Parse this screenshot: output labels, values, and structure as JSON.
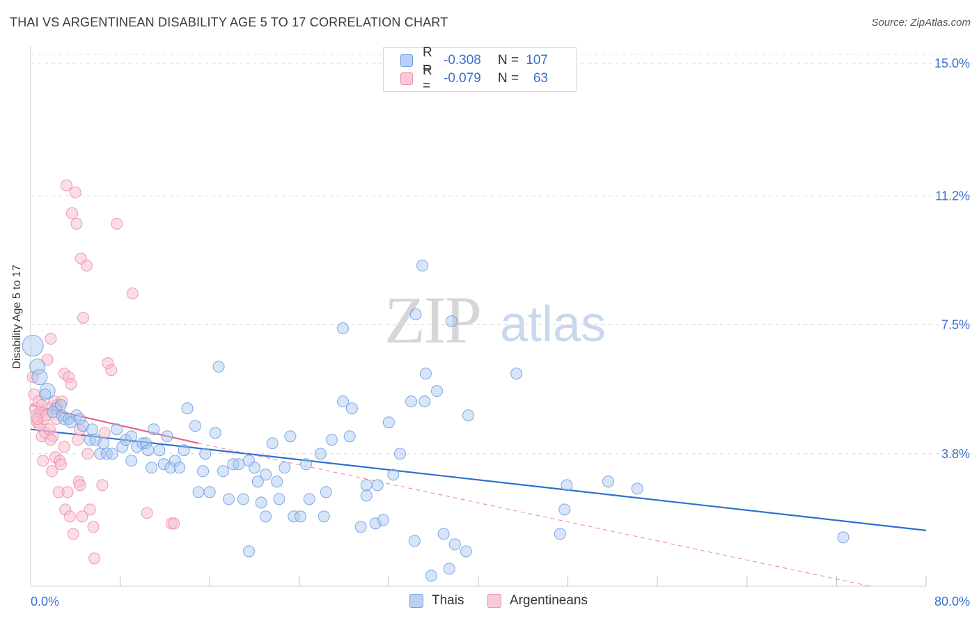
{
  "title": "THAI VS ARGENTINEAN DISABILITY AGE 5 TO 17 CORRELATION CHART",
  "source": "Source: ZipAtlas.com",
  "watermark": {
    "zip": "ZIP",
    "atlas": "atlas"
  },
  "legend": {
    "rows": [
      {
        "r_label": "R =",
        "r_value": "-0.308",
        "n_label": "N =",
        "n_value": "107",
        "series": "Thais"
      },
      {
        "r_label": "R =",
        "r_value": "-0.079",
        "n_label": "N =",
        "n_value": "63",
        "series": "Argentineans"
      }
    ]
  },
  "bottom_legend": [
    "Thais",
    "Argentineans"
  ],
  "colors": {
    "blue_fill": "#a9c6f0",
    "blue_stroke": "#6f9ee0",
    "blue_line": "#2f6fd0",
    "pink_fill": "#f6bccd",
    "pink_stroke": "#ec8fab",
    "pink_line": "#e8648e",
    "grid": "#d9d9d9",
    "axis_text": "#3a6fcf"
  },
  "chart_data": {
    "type": "scatter",
    "title": "THAI VS ARGENTINEAN DISABILITY AGE 5 TO 17 CORRELATION CHART",
    "xlabel": "",
    "ylabel": "Disability Age 5 to 17",
    "xlim": [
      0,
      80
    ],
    "ylim": [
      0,
      15.5
    ],
    "x_tick_labels": [
      "0.0%",
      "80.0%"
    ],
    "y_ticks": [
      3.8,
      7.5,
      11.2,
      15.0
    ],
    "y_tick_labels": [
      "3.8%",
      "7.5%",
      "11.2%",
      "15.0%"
    ],
    "series": [
      {
        "name": "Thais",
        "r": -0.308,
        "n": 107,
        "trend": {
          "x": [
            0,
            80
          ],
          "y": [
            4.5,
            1.6
          ],
          "dashed_extension": false
        },
        "points": [
          {
            "x": 0.2,
            "y": 6.9,
            "s": 3
          },
          {
            "x": 0.6,
            "y": 6.3,
            "s": 2
          },
          {
            "x": 0.8,
            "y": 6.0,
            "s": 2
          },
          {
            "x": 1.5,
            "y": 5.6,
            "s": 2
          },
          {
            "x": 1.3,
            "y": 5.5,
            "s": 1
          },
          {
            "x": 2.3,
            "y": 5.1,
            "s": 1
          },
          {
            "x": 2.7,
            "y": 5.2,
            "s": 1
          },
          {
            "x": 2.0,
            "y": 5.0,
            "s": 1
          },
          {
            "x": 2.8,
            "y": 4.9,
            "s": 1
          },
          {
            "x": 3.0,
            "y": 4.8,
            "s": 1
          },
          {
            "x": 3.4,
            "y": 4.8,
            "s": 1
          },
          {
            "x": 4.1,
            "y": 4.9,
            "s": 1
          },
          {
            "x": 4.4,
            "y": 4.8,
            "s": 1
          },
          {
            "x": 4.7,
            "y": 4.6,
            "s": 1
          },
          {
            "x": 3.6,
            "y": 4.7,
            "s": 1
          },
          {
            "x": 5.5,
            "y": 4.5,
            "s": 1
          },
          {
            "x": 5.3,
            "y": 4.2,
            "s": 1
          },
          {
            "x": 5.8,
            "y": 4.2,
            "s": 1
          },
          {
            "x": 6.5,
            "y": 4.1,
            "s": 1
          },
          {
            "x": 6.2,
            "y": 3.8,
            "s": 1
          },
          {
            "x": 6.8,
            "y": 3.8,
            "s": 1
          },
          {
            "x": 7.3,
            "y": 3.8,
            "s": 1
          },
          {
            "x": 7.7,
            "y": 4.5,
            "s": 1
          },
          {
            "x": 8.2,
            "y": 4.0,
            "s": 1
          },
          {
            "x": 8.5,
            "y": 4.2,
            "s": 1
          },
          {
            "x": 9.0,
            "y": 3.6,
            "s": 1
          },
          {
            "x": 9.0,
            "y": 4.3,
            "s": 1
          },
          {
            "x": 9.5,
            "y": 4.0,
            "s": 1
          },
          {
            "x": 10.0,
            "y": 4.1,
            "s": 1
          },
          {
            "x": 10.3,
            "y": 4.1,
            "s": 1
          },
          {
            "x": 10.5,
            "y": 3.9,
            "s": 1
          },
          {
            "x": 11.0,
            "y": 4.5,
            "s": 1
          },
          {
            "x": 10.8,
            "y": 3.4,
            "s": 1
          },
          {
            "x": 11.5,
            "y": 3.9,
            "s": 1
          },
          {
            "x": 11.9,
            "y": 3.5,
            "s": 1
          },
          {
            "x": 12.2,
            "y": 4.3,
            "s": 1
          },
          {
            "x": 12.5,
            "y": 3.4,
            "s": 1
          },
          {
            "x": 12.9,
            "y": 3.6,
            "s": 1
          },
          {
            "x": 13.3,
            "y": 3.4,
            "s": 1
          },
          {
            "x": 13.7,
            "y": 3.9,
            "s": 1
          },
          {
            "x": 14.0,
            "y": 5.1,
            "s": 1
          },
          {
            "x": 14.7,
            "y": 4.6,
            "s": 1
          },
          {
            "x": 15.0,
            "y": 2.7,
            "s": 1
          },
          {
            "x": 15.4,
            "y": 3.3,
            "s": 1
          },
          {
            "x": 15.6,
            "y": 3.8,
            "s": 1
          },
          {
            "x": 16.0,
            "y": 2.7,
            "s": 1
          },
          {
            "x": 16.5,
            "y": 4.4,
            "s": 1
          },
          {
            "x": 16.8,
            "y": 6.3,
            "s": 1
          },
          {
            "x": 17.2,
            "y": 3.3,
            "s": 1
          },
          {
            "x": 17.7,
            "y": 2.5,
            "s": 1
          },
          {
            "x": 18.1,
            "y": 3.5,
            "s": 1
          },
          {
            "x": 18.6,
            "y": 3.5,
            "s": 1
          },
          {
            "x": 19.0,
            "y": 2.5,
            "s": 1
          },
          {
            "x": 19.5,
            "y": 3.6,
            "s": 1
          },
          {
            "x": 19.5,
            "y": 1.0,
            "s": 1
          },
          {
            "x": 20.0,
            "y": 3.4,
            "s": 1
          },
          {
            "x": 20.3,
            "y": 3.0,
            "s": 1
          },
          {
            "x": 20.6,
            "y": 2.4,
            "s": 1
          },
          {
            "x": 21.0,
            "y": 2.0,
            "s": 1
          },
          {
            "x": 21.0,
            "y": 3.2,
            "s": 1
          },
          {
            "x": 21.6,
            "y": 4.1,
            "s": 1
          },
          {
            "x": 22.0,
            "y": 3.0,
            "s": 1
          },
          {
            "x": 22.2,
            "y": 2.5,
            "s": 1
          },
          {
            "x": 22.7,
            "y": 3.4,
            "s": 1
          },
          {
            "x": 23.2,
            "y": 4.3,
            "s": 1
          },
          {
            "x": 23.5,
            "y": 2.0,
            "s": 1
          },
          {
            "x": 24.1,
            "y": 2.0,
            "s": 1
          },
          {
            "x": 24.6,
            "y": 3.5,
            "s": 1
          },
          {
            "x": 24.9,
            "y": 2.5,
            "s": 1
          },
          {
            "x": 25.9,
            "y": 3.8,
            "s": 1
          },
          {
            "x": 26.2,
            "y": 2.0,
            "s": 1
          },
          {
            "x": 26.4,
            "y": 2.7,
            "s": 1
          },
          {
            "x": 26.9,
            "y": 4.2,
            "s": 1
          },
          {
            "x": 27.9,
            "y": 7.4,
            "s": 1
          },
          {
            "x": 27.9,
            "y": 5.3,
            "s": 1
          },
          {
            "x": 28.5,
            "y": 4.3,
            "s": 1
          },
          {
            "x": 28.7,
            "y": 5.1,
            "s": 1
          },
          {
            "x": 29.5,
            "y": 1.7,
            "s": 1
          },
          {
            "x": 30.0,
            "y": 2.9,
            "s": 1
          },
          {
            "x": 30.0,
            "y": 2.6,
            "s": 1
          },
          {
            "x": 30.8,
            "y": 1.8,
            "s": 1
          },
          {
            "x": 31.0,
            "y": 2.9,
            "s": 1
          },
          {
            "x": 31.5,
            "y": 1.9,
            "s": 1
          },
          {
            "x": 32.0,
            "y": 4.7,
            "s": 1
          },
          {
            "x": 32.4,
            "y": 3.2,
            "s": 1
          },
          {
            "x": 33.0,
            "y": 3.8,
            "s": 1
          },
          {
            "x": 34.0,
            "y": 5.3,
            "s": 1
          },
          {
            "x": 34.3,
            "y": 1.3,
            "s": 1
          },
          {
            "x": 34.4,
            "y": 7.8,
            "s": 1
          },
          {
            "x": 35.0,
            "y": 9.2,
            "s": 1
          },
          {
            "x": 35.2,
            "y": 5.3,
            "s": 1
          },
          {
            "x": 35.3,
            "y": 6.1,
            "s": 1
          },
          {
            "x": 35.8,
            "y": 0.3,
            "s": 1
          },
          {
            "x": 36.3,
            "y": 5.6,
            "s": 1
          },
          {
            "x": 36.9,
            "y": 1.5,
            "s": 1
          },
          {
            "x": 37.4,
            "y": 0.5,
            "s": 1
          },
          {
            "x": 37.6,
            "y": 7.6,
            "s": 1
          },
          {
            "x": 37.9,
            "y": 1.2,
            "s": 1
          },
          {
            "x": 38.9,
            "y": 1.0,
            "s": 1
          },
          {
            "x": 39.1,
            "y": 4.9,
            "s": 1
          },
          {
            "x": 43.4,
            "y": 6.1,
            "s": 1
          },
          {
            "x": 47.3,
            "y": 1.5,
            "s": 1
          },
          {
            "x": 47.7,
            "y": 2.2,
            "s": 1
          },
          {
            "x": 47.9,
            "y": 2.9,
            "s": 1
          },
          {
            "x": 51.6,
            "y": 3.0,
            "s": 1
          },
          {
            "x": 54.2,
            "y": 2.8,
            "s": 1
          },
          {
            "x": 72.6,
            "y": 1.4,
            "s": 1
          }
        ]
      },
      {
        "name": "Argentineans",
        "r": -0.079,
        "n": 63,
        "trend": {
          "x": [
            0,
            15
          ],
          "y": [
            5.2,
            4.1
          ],
          "dashed_extension": {
            "x": [
              15,
              75
            ],
            "y": [
              4.1,
              0.0
            ]
          }
        },
        "points": [
          {
            "x": 0.2,
            "y": 6.0,
            "s": 1
          },
          {
            "x": 0.3,
            "y": 5.5,
            "s": 1
          },
          {
            "x": 0.4,
            "y": 5.1,
            "s": 1
          },
          {
            "x": 0.5,
            "y": 4.9,
            "s": 1
          },
          {
            "x": 0.6,
            "y": 4.7,
            "s": 1
          },
          {
            "x": 0.7,
            "y": 5.3,
            "s": 1
          },
          {
            "x": 0.8,
            "y": 4.6,
            "s": 1
          },
          {
            "x": 0.9,
            "y": 5.0,
            "s": 1
          },
          {
            "x": 1.0,
            "y": 4.3,
            "s": 1
          },
          {
            "x": 1.1,
            "y": 3.6,
            "s": 1
          },
          {
            "x": 1.2,
            "y": 4.8,
            "s": 1
          },
          {
            "x": 1.3,
            "y": 4.4,
            "s": 1
          },
          {
            "x": 1.5,
            "y": 6.5,
            "s": 1
          },
          {
            "x": 1.6,
            "y": 5.1,
            "s": 1
          },
          {
            "x": 1.7,
            "y": 4.5,
            "s": 1
          },
          {
            "x": 1.8,
            "y": 7.1,
            "s": 1
          },
          {
            "x": 1.9,
            "y": 3.3,
            "s": 1
          },
          {
            "x": 2.0,
            "y": 4.3,
            "s": 1
          },
          {
            "x": 2.1,
            "y": 5.3,
            "s": 1
          },
          {
            "x": 2.2,
            "y": 3.7,
            "s": 1
          },
          {
            "x": 2.4,
            "y": 5.2,
            "s": 1
          },
          {
            "x": 2.5,
            "y": 2.7,
            "s": 1
          },
          {
            "x": 2.6,
            "y": 3.6,
            "s": 1
          },
          {
            "x": 2.7,
            "y": 3.5,
            "s": 1
          },
          {
            "x": 2.8,
            "y": 5.3,
            "s": 1
          },
          {
            "x": 3.0,
            "y": 6.1,
            "s": 1
          },
          {
            "x": 3.0,
            "y": 4.0,
            "s": 1
          },
          {
            "x": 3.1,
            "y": 2.2,
            "s": 1
          },
          {
            "x": 3.3,
            "y": 2.7,
            "s": 1
          },
          {
            "x": 3.2,
            "y": 11.5,
            "s": 1
          },
          {
            "x": 3.4,
            "y": 6.0,
            "s": 1
          },
          {
            "x": 3.5,
            "y": 2.0,
            "s": 1
          },
          {
            "x": 3.6,
            "y": 5.8,
            "s": 1
          },
          {
            "x": 3.7,
            "y": 10.7,
            "s": 1
          },
          {
            "x": 3.8,
            "y": 1.5,
            "s": 1
          },
          {
            "x": 4.0,
            "y": 11.3,
            "s": 1
          },
          {
            "x": 4.1,
            "y": 10.4,
            "s": 1
          },
          {
            "x": 4.2,
            "y": 4.2,
            "s": 1
          },
          {
            "x": 4.3,
            "y": 3.0,
            "s": 1
          },
          {
            "x": 4.4,
            "y": 2.9,
            "s": 1
          },
          {
            "x": 4.4,
            "y": 4.5,
            "s": 1
          },
          {
            "x": 4.5,
            "y": 9.4,
            "s": 1
          },
          {
            "x": 4.6,
            "y": 2.0,
            "s": 1
          },
          {
            "x": 4.7,
            "y": 7.7,
            "s": 1
          },
          {
            "x": 5.0,
            "y": 9.2,
            "s": 1
          },
          {
            "x": 5.1,
            "y": 3.8,
            "s": 1
          },
          {
            "x": 5.3,
            "y": 2.2,
            "s": 1
          },
          {
            "x": 5.6,
            "y": 1.7,
            "s": 1
          },
          {
            "x": 5.7,
            "y": 0.8,
            "s": 1
          },
          {
            "x": 6.4,
            "y": 2.9,
            "s": 1
          },
          {
            "x": 6.6,
            "y": 4.4,
            "s": 1
          },
          {
            "x": 6.9,
            "y": 6.4,
            "s": 1
          },
          {
            "x": 7.2,
            "y": 6.2,
            "s": 1
          },
          {
            "x": 7.7,
            "y": 10.4,
            "s": 1
          },
          {
            "x": 9.1,
            "y": 8.4,
            "s": 1
          },
          {
            "x": 10.4,
            "y": 2.1,
            "s": 1
          },
          {
            "x": 12.6,
            "y": 1.8,
            "s": 1
          },
          {
            "x": 12.8,
            "y": 1.8,
            "s": 1
          },
          {
            "x": 1.4,
            "y": 4.9,
            "s": 1
          },
          {
            "x": 1.0,
            "y": 5.2,
            "s": 1
          },
          {
            "x": 2.3,
            "y": 4.8,
            "s": 1
          },
          {
            "x": 0.6,
            "y": 4.8,
            "s": 1
          },
          {
            "x": 1.8,
            "y": 4.2,
            "s": 1
          }
        ]
      }
    ]
  }
}
